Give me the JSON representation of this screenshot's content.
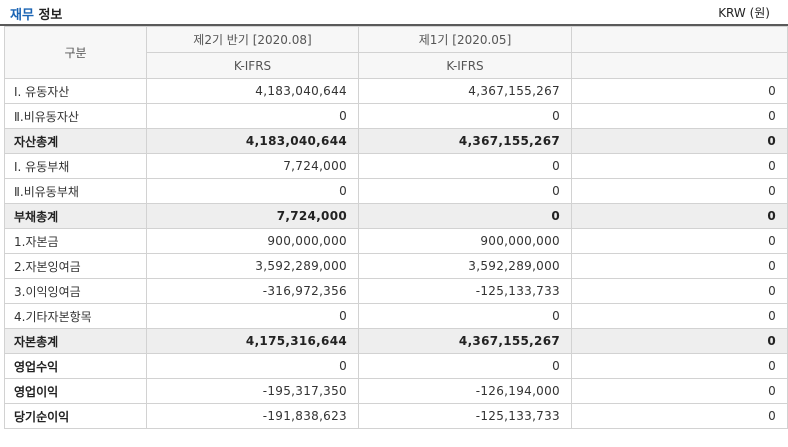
{
  "header": {
    "title_accent": "재무",
    "title_rest": " 정보",
    "unit": "KRW (원)"
  },
  "table": {
    "col_label": "구분",
    "periods": [
      "제2기 반기 [2020.08]",
      "제1기 [2020.05]",
      ""
    ],
    "standards": [
      "K-IFRS",
      "K-IFRS",
      ""
    ],
    "rows": [
      {
        "label": "Ⅰ. 유동자산",
        "values": [
          "4,183,040,644",
          "4,367,155,267",
          "0"
        ],
        "style": "normal"
      },
      {
        "label": "Ⅱ.비유동자산",
        "values": [
          "0",
          "0",
          "0"
        ],
        "style": "normal"
      },
      {
        "label": "자산총계",
        "values": [
          "4,183,040,644",
          "4,367,155,267",
          "0"
        ],
        "style": "total"
      },
      {
        "label": "Ⅰ. 유동부채",
        "values": [
          "7,724,000",
          "0",
          "0"
        ],
        "style": "normal"
      },
      {
        "label": "Ⅱ.비유동부채",
        "values": [
          "0",
          "0",
          "0"
        ],
        "style": "normal"
      },
      {
        "label": "부채총계",
        "values": [
          "7,724,000",
          "0",
          "0"
        ],
        "style": "total"
      },
      {
        "label": "1.자본금",
        "values": [
          "900,000,000",
          "900,000,000",
          "0"
        ],
        "style": "normal"
      },
      {
        "label": "2.자본잉여금",
        "values": [
          "3,592,289,000",
          "3,592,289,000",
          "0"
        ],
        "style": "normal"
      },
      {
        "label": "3.이익잉여금",
        "values": [
          "-316,972,356",
          "-125,133,733",
          "0"
        ],
        "style": "normal"
      },
      {
        "label": "4.기타자본항목",
        "values": [
          "0",
          "0",
          "0"
        ],
        "style": "normal"
      },
      {
        "label": "자본총계",
        "values": [
          "4,175,316,644",
          "4,367,155,267",
          "0"
        ],
        "style": "total"
      },
      {
        "label": "영업수익",
        "values": [
          "0",
          "0",
          "0"
        ],
        "style": "bold"
      },
      {
        "label": "영업이익",
        "values": [
          "-195,317,350",
          "-126,194,000",
          "0"
        ],
        "style": "bold"
      },
      {
        "label": "당기순이익",
        "values": [
          "-191,838,623",
          "-125,133,733",
          "0"
        ],
        "style": "bold"
      }
    ]
  }
}
